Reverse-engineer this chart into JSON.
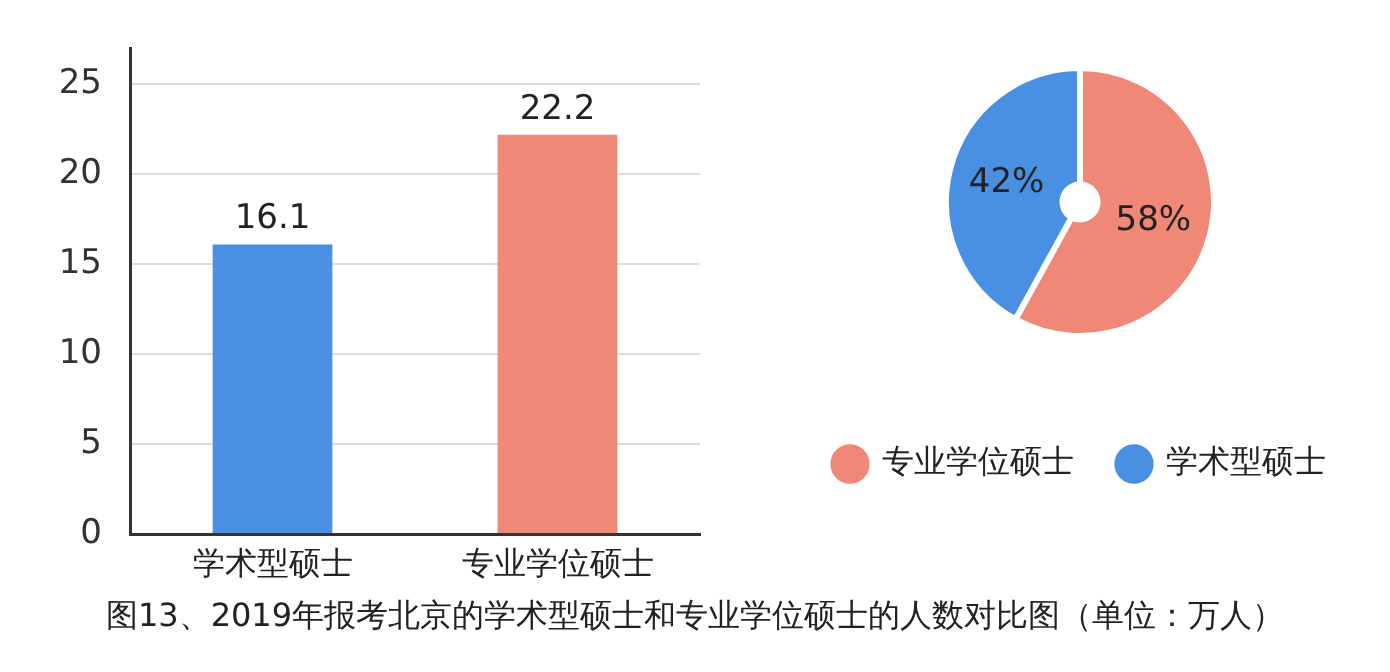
{
  "chart_data": [
    {
      "type": "bar",
      "categories": [
        "学术型硕士",
        "专业学位硕士"
      ],
      "values": [
        16.1,
        22.2
      ],
      "colors": [
        "#4a90e2",
        "#f08878"
      ],
      "ylim": [
        0,
        27
      ],
      "yticks": [
        0,
        5,
        10,
        15,
        20,
        25
      ],
      "grid": "y",
      "data_labels": true,
      "legend": false,
      "annotations": [
        "图13、2019年报考北京的学术型硕士和专业学位硕士的人数对比图（单位：万人）"
      ]
    },
    {
      "type": "donut",
      "categories": [
        "专业学位硕士",
        "学术型硕士"
      ],
      "values": [
        58,
        42
      ],
      "colors": [
        "#f08878",
        "#4a90e2"
      ],
      "value_labels": [
        "58%",
        "42%"
      ],
      "legend": "bottom"
    }
  ]
}
